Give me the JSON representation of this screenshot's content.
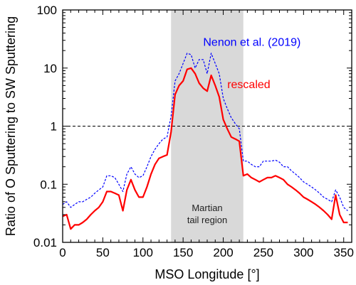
{
  "chart_data": {
    "type": "line",
    "title": "",
    "xlabel": "MSO Longitude [°]",
    "ylabel": "Ratio of O Sputtering to SW Sputtering",
    "xlim": [
      0,
      360
    ],
    "ylim": [
      0.01,
      100
    ],
    "yscale": "log",
    "grid": false,
    "x_ticks": [
      0,
      50,
      100,
      150,
      200,
      250,
      300,
      350
    ],
    "y_ticks": [
      {
        "value": 0.01,
        "label": "0.01"
      },
      {
        "value": 0.1,
        "label": "0.1"
      },
      {
        "value": 1,
        "label": "1"
      },
      {
        "value": 10,
        "label": "10"
      },
      {
        "value": 100,
        "label": "100"
      }
    ],
    "shaded_region": {
      "x": [
        135,
        225
      ],
      "label_lines": [
        "Martian",
        "tail region"
      ],
      "color": "#d9d9d9"
    },
    "reference_line": {
      "y": 1,
      "style": "dashed",
      "color": "#000000"
    },
    "series": [
      {
        "name": "Nenon et al. (2019)",
        "color": "#0000ff",
        "style": "dotted",
        "x": [
          0,
          5,
          10,
          15,
          20,
          25,
          30,
          35,
          40,
          45,
          50,
          55,
          60,
          65,
          70,
          75,
          80,
          85,
          90,
          95,
          100,
          105,
          110,
          115,
          120,
          125,
          130,
          135,
          140,
          145,
          150,
          155,
          160,
          165,
          170,
          175,
          180,
          185,
          190,
          195,
          200,
          205,
          210,
          215,
          220,
          225,
          230,
          235,
          240,
          245,
          250,
          255,
          260,
          265,
          270,
          275,
          280,
          285,
          290,
          295,
          300,
          305,
          310,
          315,
          320,
          325,
          330,
          335,
          340,
          345,
          350,
          355
        ],
        "y": [
          0.045,
          0.05,
          0.04,
          0.045,
          0.05,
          0.05,
          0.055,
          0.06,
          0.07,
          0.08,
          0.09,
          0.14,
          0.14,
          0.13,
          0.1,
          0.075,
          0.15,
          0.2,
          0.15,
          0.13,
          0.14,
          0.2,
          0.3,
          0.4,
          0.5,
          0.6,
          0.65,
          1.5,
          6,
          8,
          12,
          18,
          17,
          10,
          14,
          14,
          8,
          18,
          12,
          8,
          3,
          2,
          1.4,
          1.1,
          0.9,
          0.25,
          0.25,
          0.22,
          0.2,
          0.2,
          0.25,
          0.25,
          0.25,
          0.26,
          0.24,
          0.2,
          0.2,
          0.17,
          0.15,
          0.13,
          0.11,
          0.1,
          0.09,
          0.08,
          0.07,
          0.06,
          0.055,
          0.05,
          0.08,
          0.06,
          0.04,
          0.035
        ]
      },
      {
        "name": "rescaled",
        "color": "#ff0000",
        "style": "solid",
        "x": [
          0,
          5,
          10,
          15,
          20,
          25,
          30,
          35,
          40,
          45,
          50,
          55,
          60,
          65,
          70,
          75,
          80,
          85,
          90,
          95,
          100,
          105,
          110,
          115,
          120,
          125,
          130,
          135,
          140,
          145,
          150,
          155,
          160,
          165,
          170,
          175,
          180,
          185,
          190,
          195,
          200,
          205,
          210,
          215,
          220,
          225,
          230,
          235,
          240,
          245,
          250,
          255,
          260,
          265,
          270,
          275,
          280,
          285,
          290,
          295,
          300,
          305,
          310,
          315,
          320,
          325,
          330,
          335,
          340,
          345,
          350,
          355
        ],
        "y": [
          0.028,
          0.03,
          0.017,
          0.02,
          0.02,
          0.022,
          0.025,
          0.03,
          0.035,
          0.04,
          0.05,
          0.075,
          0.075,
          0.07,
          0.065,
          0.035,
          0.08,
          0.12,
          0.08,
          0.06,
          0.06,
          0.09,
          0.15,
          0.22,
          0.28,
          0.3,
          0.32,
          0.8,
          3.5,
          5,
          6,
          9.5,
          10,
          8,
          5.5,
          4.5,
          4,
          7.5,
          5,
          3.2,
          1.3,
          0.9,
          0.65,
          0.6,
          0.55,
          0.14,
          0.15,
          0.13,
          0.12,
          0.11,
          0.12,
          0.13,
          0.13,
          0.14,
          0.13,
          0.12,
          0.1,
          0.09,
          0.08,
          0.07,
          0.06,
          0.055,
          0.05,
          0.045,
          0.04,
          0.035,
          0.03,
          0.025,
          0.065,
          0.03,
          0.022,
          0.022
        ]
      }
    ],
    "annotations": [
      {
        "text": "Nenon et al. (2019)",
        "color": "#0000ff",
        "x": 175,
        "y": 24
      },
      {
        "text": "rescaled",
        "color": "#ff0000",
        "x": 205,
        "y": 4.5
      }
    ]
  }
}
